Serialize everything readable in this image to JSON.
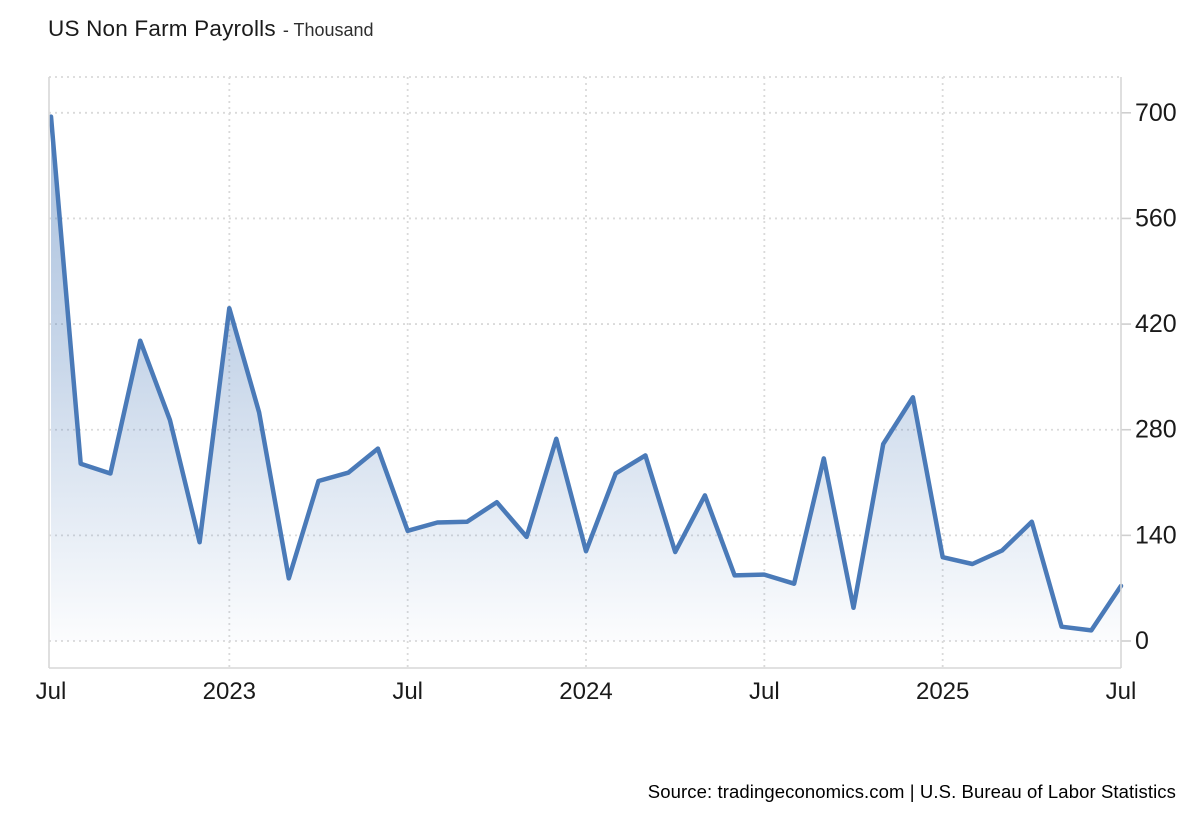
{
  "header": {
    "title": "US Non Farm Payrolls",
    "subtitle": "- Thousand"
  },
  "chart_data": {
    "type": "area",
    "title": "US Non Farm Payrolls",
    "unit": "Thousand",
    "series_name": "US Non Farm Payrolls (Thousand)",
    "x": [
      "Jul 2022",
      "Aug 2022",
      "Sep 2022",
      "Oct 2022",
      "Nov 2022",
      "Dec 2022",
      "Jan 2023",
      "Feb 2023",
      "Mar 2023",
      "Apr 2023",
      "May 2023",
      "Jun 2023",
      "Jul 2023",
      "Aug 2023",
      "Sep 2023",
      "Oct 2023",
      "Nov 2023",
      "Dec 2023",
      "Jan 2024",
      "Feb 2024",
      "Mar 2024",
      "Apr 2024",
      "May 2024",
      "Jun 2024",
      "Jul 2024",
      "Aug 2024",
      "Sep 2024",
      "Oct 2024",
      "Nov 2024",
      "Dec 2024",
      "Jan 2025",
      "Feb 2025",
      "Mar 2025",
      "Apr 2025",
      "May 2025",
      "Jun 2025",
      "Jul 2025"
    ],
    "values": [
      695,
      235,
      222,
      398,
      293,
      131,
      441,
      303,
      83,
      212,
      223,
      255,
      146,
      157,
      158,
      184,
      138,
      268,
      119,
      222,
      246,
      118,
      193,
      87,
      88,
      76,
      242,
      44,
      261,
      323,
      111,
      102,
      120,
      158,
      19,
      14,
      73
    ],
    "x_ticks": [
      {
        "label": "Jul",
        "index": 0
      },
      {
        "label": "2023",
        "index": 6
      },
      {
        "label": "Jul",
        "index": 12
      },
      {
        "label": "2024",
        "index": 18
      },
      {
        "label": "Jul",
        "index": 24
      },
      {
        "label": "2025",
        "index": 30
      },
      {
        "label": "Jul",
        "index": 36
      }
    ],
    "y_ticks": [
      700,
      560,
      420,
      280,
      140,
      0
    ],
    "ylim": [
      0,
      700
    ],
    "grid": "dotted",
    "legend": "none",
    "colors": {
      "line": "#4a7ab8",
      "fill_top": "rgba(74,122,184,0.50)",
      "fill_mid": "rgba(74,122,184,0.30)",
      "fill_bottom": "rgba(74,122,184,0.02)",
      "grid": "#dadada",
      "frame": "#d7d7d7",
      "tick": "#cfcfcf",
      "text": "#1a1a1a"
    }
  },
  "footer": {
    "source": "Source: tradingeconomics.com | U.S. Bureau of Labor Statistics"
  }
}
